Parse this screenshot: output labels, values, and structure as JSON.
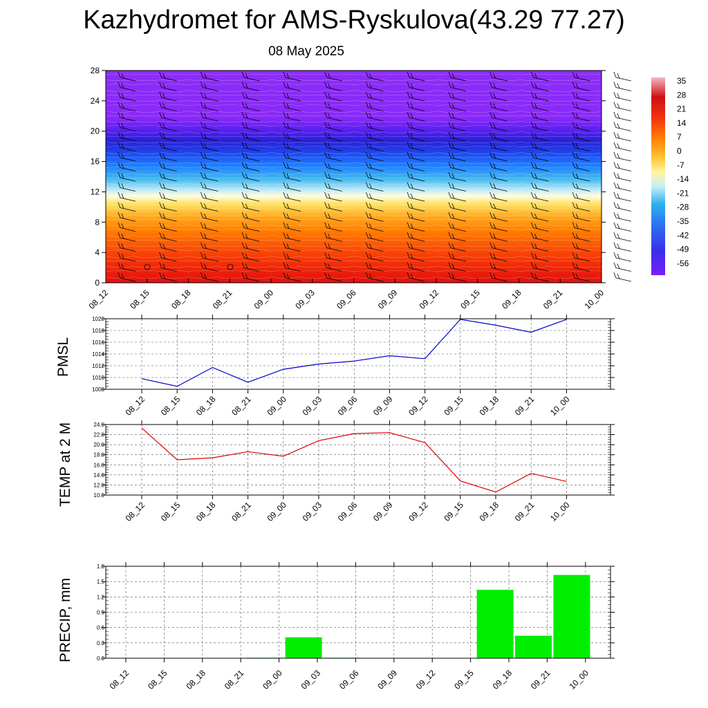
{
  "header": {
    "title": "Kazhydromet for AMS-Ryskulova(43.29 77.27)",
    "date": "08 May 2025"
  },
  "colors": {
    "pmsl_line": "#0000cc",
    "temp_line": "#dd0000",
    "precip_bar": "#00ee00"
  },
  "chart_data": [
    {
      "type": "heatmap",
      "title": "Kazhydromet for AMS-Ryskulova(43.29 77.27)",
      "subtitle": "08 May 2025",
      "x": [
        "08_12",
        "08_15",
        "08_18",
        "08_21",
        "09_00",
        "09_03",
        "09_06",
        "09_09",
        "09_12",
        "09_15",
        "09_18",
        "09_21",
        "10_00"
      ],
      "yticks": [
        0,
        4,
        8,
        12,
        16,
        20,
        24,
        28
      ],
      "ylim": [
        0,
        28
      ],
      "colorbar_ticks": [
        "35",
        "28",
        "21",
        "14",
        "7",
        "0",
        "-7",
        "-14",
        "-21",
        "-28",
        "-35",
        "-42",
        "-49",
        "-56"
      ],
      "overlay": "wind barbs",
      "description_values": {
        "temperature_profile_levels": [
          0,
          2,
          4,
          6,
          8,
          10,
          12,
          14,
          16,
          18,
          20,
          22,
          24,
          26,
          28
        ],
        "temperature_profile_values": [
          24,
          20,
          15,
          9,
          3,
          -4,
          -12,
          -22,
          -36,
          -52,
          -60,
          -55,
          -52,
          -52,
          -52
        ]
      }
    },
    {
      "type": "line",
      "ylabel": "PMSL",
      "x": [
        "08_12",
        "08_15",
        "08_18",
        "08_21",
        "09_00",
        "09_03",
        "09_06",
        "09_09",
        "09_12",
        "09_15",
        "09_18",
        "09_21",
        "10_00"
      ],
      "yticks": [
        "1008",
        "1010",
        "1012",
        "1014",
        "1016",
        "1018",
        "1020"
      ],
      "ylim": [
        1008,
        1020
      ],
      "series": [
        {
          "values": [
            1009.8,
            1008.5,
            1011.7,
            1009.2,
            1011.4,
            1012.3,
            1012.8,
            1013.7,
            1013.2,
            1019.9,
            1018.9,
            1017.7,
            1019.9
          ]
        }
      ]
    },
    {
      "type": "line",
      "ylabel": "TEMP at 2 M",
      "x": [
        "08_12",
        "08_15",
        "08_18",
        "08_21",
        "09_00",
        "09_03",
        "09_06",
        "09_09",
        "09_12",
        "09_15",
        "09_18",
        "09_21",
        "10_00"
      ],
      "yticks": [
        "10.0",
        "12.0",
        "14.0",
        "16.0",
        "18.0",
        "20.0",
        "22.0",
        "24.0"
      ],
      "ylim": [
        10,
        24
      ],
      "series": [
        {
          "values": [
            23.3,
            17.0,
            17.4,
            18.6,
            17.7,
            20.8,
            22.2,
            22.4,
            20.4,
            12.8,
            10.6,
            14.3,
            12.7
          ]
        }
      ]
    },
    {
      "type": "bar",
      "ylabel": "PRECIP, mm",
      "categories": [
        "08_12",
        "08_15",
        "08_18",
        "08_21",
        "09_00",
        "09_03",
        "09_06",
        "09_09",
        "09_12",
        "09_15",
        "09_18",
        "09_21",
        "10_00"
      ],
      "yticks": [
        "0.0",
        "0.3",
        "0.6",
        "0.9",
        "1.2",
        "1.5",
        "1.8"
      ],
      "ylim": [
        0,
        1.8
      ],
      "values": [
        0,
        0,
        0,
        0.01,
        0.41,
        0.01,
        0,
        0,
        0,
        1.34,
        0.44,
        1.63,
        0
      ]
    }
  ]
}
